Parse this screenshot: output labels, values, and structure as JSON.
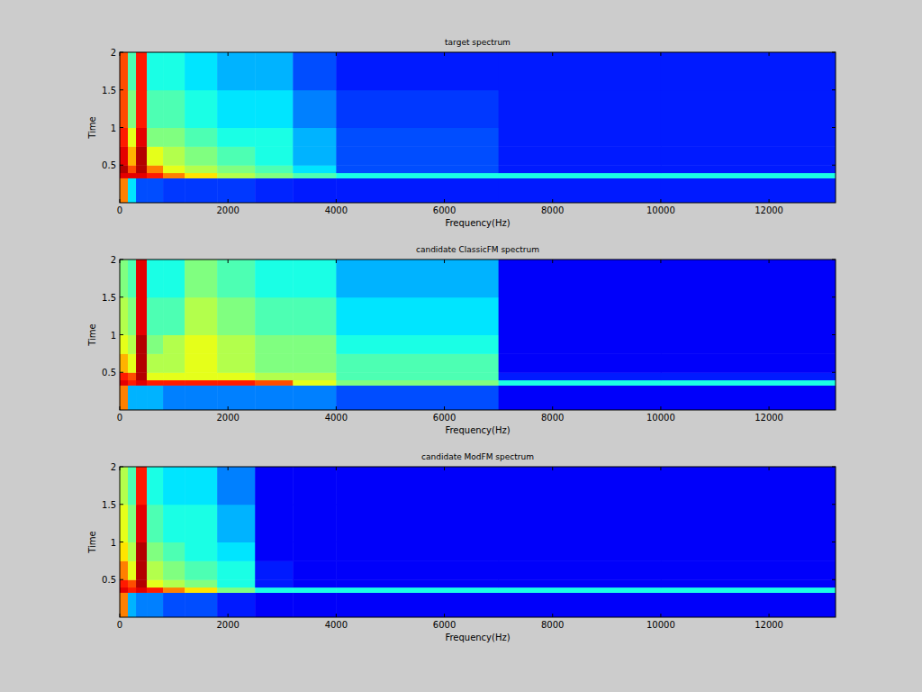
{
  "chart_data": [
    {
      "type": "heatmap",
      "title": "target spectrum",
      "x_label": "Frequency(Hz)",
      "y_label": "Time",
      "xlim": [
        0,
        13230
      ],
      "ylim": [
        0,
        2
      ],
      "xticks": [
        0,
        2000,
        4000,
        6000,
        8000,
        10000,
        12000
      ],
      "yticks": [
        0.5,
        1,
        1.5,
        2
      ],
      "x_edges": [
        0,
        150,
        300,
        500,
        800,
        1200,
        1800,
        2500,
        3200,
        4000,
        7000,
        10000,
        13230
      ],
      "y_edges": [
        0,
        0.33,
        0.4,
        0.5,
        0.75,
        1.0,
        1.5,
        2.0
      ],
      "clim": [
        0,
        1
      ],
      "cells": [
        [
          0.75,
          0.35,
          0.2,
          0.2,
          0.18,
          0.18,
          0.18,
          0.16,
          0.15,
          0.15,
          0.15,
          0.15
        ],
        [
          0.9,
          0.9,
          0.9,
          0.85,
          0.75,
          0.65,
          0.55,
          0.5,
          0.45,
          0.4,
          0.4,
          0.4
        ],
        [
          0.95,
          0.8,
          0.95,
          0.75,
          0.6,
          0.55,
          0.5,
          0.45,
          0.35,
          0.2,
          0.15,
          0.15
        ],
        [
          0.9,
          0.7,
          0.95,
          0.6,
          0.55,
          0.5,
          0.45,
          0.4,
          0.3,
          0.2,
          0.15,
          0.15
        ],
        [
          0.85,
          0.6,
          0.9,
          0.5,
          0.5,
          0.45,
          0.4,
          0.4,
          0.3,
          0.2,
          0.15,
          0.15
        ],
        [
          0.8,
          0.5,
          0.85,
          0.45,
          0.45,
          0.4,
          0.35,
          0.35,
          0.25,
          0.18,
          0.15,
          0.15
        ],
        [
          0.8,
          0.45,
          0.85,
          0.4,
          0.4,
          0.35,
          0.3,
          0.3,
          0.2,
          0.15,
          0.15,
          0.15
        ]
      ]
    },
    {
      "type": "heatmap",
      "title": "candidate ClassicFM spectrum",
      "x_label": "Frequency(Hz)",
      "y_label": "Time",
      "xlim": [
        0,
        13230
      ],
      "ylim": [
        0,
        2
      ],
      "xticks": [
        0,
        2000,
        4000,
        6000,
        8000,
        10000,
        12000
      ],
      "yticks": [
        0.5,
        1,
        1.5,
        2
      ],
      "x_edges": [
        0,
        150,
        300,
        500,
        800,
        1200,
        1800,
        2500,
        3200,
        4000,
        7000,
        10000,
        13230
      ],
      "y_edges": [
        0,
        0.33,
        0.4,
        0.5,
        0.75,
        1.0,
        1.5,
        2.0
      ],
      "clim": [
        0,
        1
      ],
      "cells": [
        [
          0.75,
          0.3,
          0.3,
          0.3,
          0.25,
          0.25,
          0.25,
          0.25,
          0.25,
          0.2,
          0.12,
          0.12
        ],
        [
          0.9,
          0.85,
          0.9,
          0.85,
          0.85,
          0.85,
          0.85,
          0.8,
          0.6,
          0.5,
          0.4,
          0.4
        ],
        [
          0.85,
          0.8,
          0.95,
          0.6,
          0.6,
          0.6,
          0.6,
          0.55,
          0.55,
          0.45,
          0.15,
          0.15
        ],
        [
          0.7,
          0.6,
          0.95,
          0.55,
          0.55,
          0.6,
          0.55,
          0.5,
          0.5,
          0.45,
          0.12,
          0.12
        ],
        [
          0.6,
          0.55,
          0.95,
          0.5,
          0.55,
          0.6,
          0.55,
          0.5,
          0.5,
          0.4,
          0.12,
          0.12
        ],
        [
          0.55,
          0.5,
          0.9,
          0.45,
          0.45,
          0.55,
          0.5,
          0.45,
          0.45,
          0.35,
          0.12,
          0.12
        ],
        [
          0.5,
          0.45,
          0.9,
          0.4,
          0.4,
          0.5,
          0.45,
          0.4,
          0.4,
          0.3,
          0.12,
          0.12
        ]
      ]
    },
    {
      "type": "heatmap",
      "title": "candidate ModFM spectrum",
      "x_label": "Frequency(Hz)",
      "y_label": "Time",
      "xlim": [
        0,
        13230
      ],
      "ylim": [
        0,
        2
      ],
      "xticks": [
        0,
        2000,
        4000,
        6000,
        8000,
        10000,
        12000
      ],
      "yticks": [
        0.5,
        1,
        1.5,
        2
      ],
      "x_edges": [
        0,
        150,
        300,
        500,
        800,
        1200,
        1800,
        2500,
        3200,
        4000,
        7000,
        10000,
        13230
      ],
      "y_edges": [
        0,
        0.33,
        0.4,
        0.5,
        0.75,
        1.0,
        1.5,
        2.0
      ],
      "clim": [
        0,
        1
      ],
      "cells": [
        [
          0.75,
          0.3,
          0.25,
          0.25,
          0.2,
          0.2,
          0.15,
          0.12,
          0.12,
          0.12,
          0.12,
          0.12
        ],
        [
          0.9,
          0.85,
          0.9,
          0.85,
          0.75,
          0.65,
          0.5,
          0.4,
          0.4,
          0.4,
          0.4,
          0.4
        ],
        [
          0.85,
          0.8,
          0.95,
          0.6,
          0.55,
          0.5,
          0.4,
          0.15,
          0.12,
          0.12,
          0.12,
          0.12
        ],
        [
          0.75,
          0.6,
          0.95,
          0.55,
          0.5,
          0.45,
          0.4,
          0.15,
          0.12,
          0.12,
          0.12,
          0.12
        ],
        [
          0.65,
          0.55,
          0.95,
          0.5,
          0.45,
          0.4,
          0.35,
          0.12,
          0.12,
          0.12,
          0.12,
          0.12
        ],
        [
          0.6,
          0.5,
          0.9,
          0.45,
          0.4,
          0.4,
          0.3,
          0.12,
          0.12,
          0.12,
          0.12,
          0.12
        ],
        [
          0.55,
          0.45,
          0.85,
          0.4,
          0.35,
          0.35,
          0.25,
          0.12,
          0.12,
          0.12,
          0.12,
          0.12
        ]
      ]
    }
  ]
}
